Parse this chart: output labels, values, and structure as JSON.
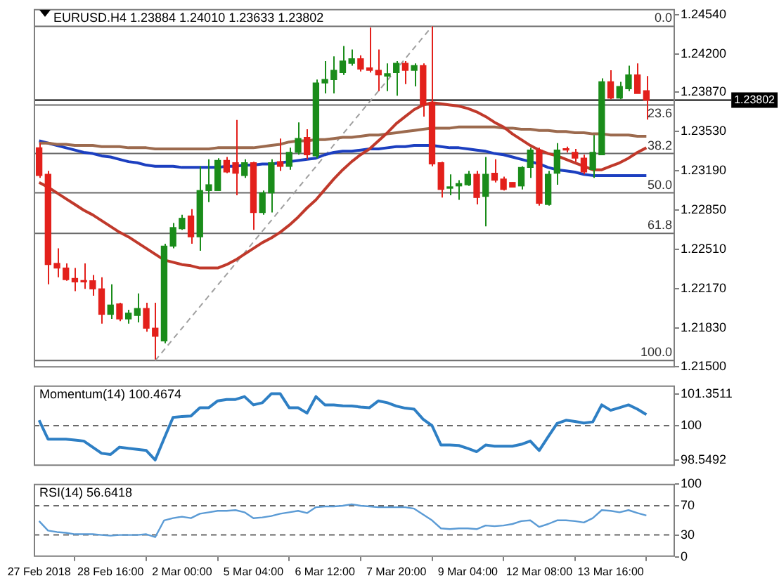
{
  "chart_data": [
    {
      "type": "candlestick",
      "title": "EURUSD.H4 1.23884 1.24010 1.23633 1.23802",
      "tick_labels": "y",
      "categories": [
        null,
        null,
        null,
        null,
        null,
        null,
        null,
        null,
        null,
        null,
        null,
        null,
        null,
        null,
        null,
        null,
        null,
        null,
        null,
        null,
        null,
        null,
        null,
        null,
        null,
        null,
        null,
        null,
        null,
        null,
        null,
        null,
        null,
        null,
        null,
        null,
        null,
        null,
        null,
        null,
        null,
        null,
        null,
        null,
        null,
        null,
        null,
        null,
        null,
        null,
        null,
        null,
        null,
        null,
        null,
        null,
        null,
        null,
        null,
        null,
        null,
        null,
        null,
        null,
        null,
        null,
        null,
        null,
        null
      ],
      "ohlc": [
        [
          1.2339,
          1.2343,
          1.2313,
          1.2315
        ],
        [
          1.2316,
          1.2319,
          1.2221,
          1.2238
        ],
        [
          1.2239,
          1.2252,
          1.2227,
          1.2235
        ],
        [
          1.2235,
          1.2239,
          1.2224,
          1.2225
        ],
        [
          1.2226,
          1.2235,
          1.2215,
          1.2223
        ],
        [
          1.2224,
          1.2239,
          1.2217,
          1.2223
        ],
        [
          1.2224,
          1.2229,
          1.2211,
          1.2217
        ],
        [
          1.2217,
          1.2227,
          1.2187,
          1.2195
        ],
        [
          1.2195,
          1.2221,
          1.2191,
          1.2203
        ],
        [
          1.2204,
          1.2205,
          1.2189,
          1.2191
        ],
        [
          1.2191,
          1.2199,
          1.2187,
          1.2196
        ],
        [
          1.2194,
          1.2213,
          1.2188,
          1.22
        ],
        [
          1.22,
          1.2205,
          1.218,
          1.2183
        ],
        [
          1.2183,
          1.2205,
          1.2156,
          1.2176
        ],
        [
          1.2172,
          1.2256,
          1.217,
          1.2254
        ],
        [
          1.2254,
          1.2274,
          1.2252,
          1.227
        ],
        [
          1.2269,
          1.2281,
          1.2268,
          1.2278
        ],
        [
          1.228,
          1.2286,
          1.2256,
          1.2262
        ],
        [
          1.2262,
          1.2323,
          1.225,
          1.2302
        ],
        [
          1.2302,
          1.2329,
          1.2292,
          1.2307
        ],
        [
          1.2302,
          1.233,
          1.2302,
          1.2328
        ],
        [
          1.2328,
          1.2331,
          1.2317,
          1.2318
        ],
        [
          1.2326,
          1.2363,
          1.2298,
          1.2317
        ],
        [
          1.2315,
          1.2329,
          1.2313,
          1.2326
        ],
        [
          1.2326,
          1.2327,
          1.2268,
          1.2283
        ],
        [
          1.2283,
          1.2302,
          1.2281,
          1.23
        ],
        [
          1.23,
          1.2329,
          1.2283,
          1.2326
        ],
        [
          1.2327,
          1.2347,
          1.2319,
          1.2323
        ],
        [
          1.2323,
          1.2339,
          1.232,
          1.2335
        ],
        [
          1.2335,
          1.2361,
          1.2333,
          1.2347
        ],
        [
          1.2348,
          1.2355,
          1.2329,
          1.2333
        ],
        [
          1.2332,
          1.2398,
          1.233,
          1.2395
        ],
        [
          1.2395,
          1.2414,
          1.2386,
          1.2398
        ],
        [
          1.2398,
          1.2418,
          1.2386,
          1.2406
        ],
        [
          1.2404,
          1.2427,
          1.2402,
          1.2414
        ],
        [
          1.2412,
          1.2424,
          1.241,
          1.2416
        ],
        [
          1.2416,
          1.2419,
          1.2405,
          1.2407
        ],
        [
          1.2408,
          1.2443,
          1.2404,
          1.2406
        ],
        [
          1.2406,
          1.2424,
          1.2388,
          1.2402
        ],
        [
          1.2401,
          1.2412,
          1.2388,
          1.2403
        ],
        [
          1.2404,
          1.2414,
          1.2384,
          1.2412
        ],
        [
          1.2412,
          1.2414,
          1.2394,
          1.2406
        ],
        [
          1.2406,
          1.2412,
          1.2392,
          1.241
        ],
        [
          1.241,
          1.2412,
          1.2366,
          1.2376
        ],
        [
          1.2378,
          1.2444,
          1.2323,
          1.2325
        ],
        [
          1.2326,
          1.2327,
          1.2296,
          1.2303
        ],
        [
          1.2304,
          1.2316,
          1.2298,
          1.2305
        ],
        [
          1.2306,
          1.2311,
          1.2294,
          1.2308
        ],
        [
          1.2307,
          1.2319,
          1.2306,
          1.2316
        ],
        [
          1.2316,
          1.2319,
          1.229,
          1.2296
        ],
        [
          1.2297,
          1.2331,
          1.2271,
          1.2316
        ],
        [
          1.2317,
          1.2329,
          1.2309,
          1.2311
        ],
        [
          1.2312,
          1.2314,
          1.2302,
          1.2303
        ],
        [
          1.2309,
          1.2309,
          1.2305,
          1.2305
        ],
        [
          1.2306,
          1.2323,
          1.2303,
          1.2322
        ],
        [
          1.2322,
          1.2339,
          1.2313,
          1.2337
        ],
        [
          1.2337,
          1.2339,
          1.2289,
          1.2291
        ],
        [
          1.229,
          1.2319,
          1.2289,
          1.2316
        ],
        [
          1.2317,
          1.2343,
          1.2307,
          1.2337
        ],
        [
          1.2338,
          1.234,
          1.2335,
          1.2337
        ],
        [
          1.2335,
          1.2338,
          1.2327,
          1.233
        ],
        [
          1.233,
          1.2333,
          1.2316,
          1.2318
        ],
        [
          1.232,
          1.235,
          1.2313,
          1.2335
        ],
        [
          1.2333,
          1.2399,
          1.2333,
          1.2396
        ],
        [
          1.2396,
          1.2406,
          1.2381,
          1.2382
        ],
        [
          1.2382,
          1.2396,
          1.2381,
          1.2392
        ],
        [
          1.239,
          1.241,
          1.2388,
          1.2402
        ],
        [
          1.2402,
          1.2412,
          1.2386,
          1.2386
        ],
        [
          1.23884,
          1.2401,
          1.23633,
          1.23802
        ]
      ],
      "series": [
        {
          "type": "line",
          "color": "#c0392b",
          "values": [
            1.2309,
            1.2305,
            1.23,
            1.2295,
            1.229,
            1.2285,
            1.2281,
            1.2276,
            1.2271,
            1.2266,
            1.2262,
            1.2257,
            1.2252,
            1.2247,
            1.2242,
            1.224,
            1.2238,
            1.2237,
            1.2235,
            1.2235,
            1.2235,
            1.2238,
            1.2242,
            1.2247,
            1.2252,
            1.2257,
            1.2261,
            1.2266,
            1.2272,
            1.2279,
            1.2287,
            1.2294,
            1.2303,
            1.2312,
            1.232,
            1.2327,
            1.2333,
            1.2338,
            1.2345,
            1.2352,
            1.236,
            1.2366,
            1.2372,
            1.2376,
            1.2378,
            1.2377,
            1.2376,
            1.2375,
            1.2373,
            1.237,
            1.2366,
            1.2361,
            1.2357,
            1.2351,
            1.2346,
            1.2341,
            1.2337,
            1.2334,
            1.2332,
            1.2329,
            1.2326,
            1.2323,
            1.232,
            1.232,
            1.2323,
            1.2326,
            1.233,
            1.2335,
            1.2339
          ]
        },
        {
          "type": "line",
          "color": "#9c6a4e",
          "values": [
            1.2343,
            1.2343,
            1.2342,
            1.2342,
            1.2341,
            1.2341,
            1.2341,
            1.234,
            1.234,
            1.234,
            1.2339,
            1.2339,
            1.2339,
            1.2338,
            1.2338,
            1.2338,
            1.2338,
            1.2338,
            1.2338,
            1.2338,
            1.2339,
            1.2339,
            1.2339,
            1.2339,
            1.2339,
            1.234,
            1.2341,
            1.2342,
            1.2344,
            1.2345,
            1.2345,
            1.2346,
            1.2346,
            1.2347,
            1.2348,
            1.2348,
            1.2349,
            1.235,
            1.235,
            1.2351,
            1.2352,
            1.2353,
            1.2354,
            1.2355,
            1.2356,
            1.2356,
            1.2356,
            1.2357,
            1.2357,
            1.2357,
            1.2357,
            1.2357,
            1.2356,
            1.2356,
            1.2355,
            1.2355,
            1.2354,
            1.2354,
            1.2353,
            1.2353,
            1.2352,
            1.2352,
            1.2351,
            1.2351,
            1.235,
            1.235,
            1.235,
            1.2349,
            1.2349
          ]
        },
        {
          "type": "line",
          "color": "#1c3fc0",
          "values": [
            1.2345,
            1.2343,
            1.2341,
            1.2339,
            1.2337,
            1.2335,
            1.2334,
            1.2332,
            1.2331,
            1.2329,
            1.2327,
            1.2326,
            1.2324,
            1.2323,
            1.2323,
            1.2323,
            1.2322,
            1.2322,
            1.2322,
            1.2322,
            1.2322,
            1.2323,
            1.2323,
            1.2324,
            1.2324,
            1.2325,
            1.2325,
            1.2326,
            1.2327,
            1.2328,
            1.2329,
            1.233,
            1.2333,
            1.2335,
            1.2336,
            1.2336,
            1.2337,
            1.2338,
            1.2338,
            1.2339,
            1.234,
            1.234,
            1.2341,
            1.2341,
            1.2341,
            1.234,
            1.2339,
            1.2339,
            1.2338,
            1.2337,
            1.2336,
            1.2334,
            1.2333,
            1.2331,
            1.2329,
            1.2327,
            1.2325,
            1.2322,
            1.232,
            1.2319,
            1.2318,
            1.2316,
            1.2315,
            1.2315,
            1.2315,
            1.2315,
            1.2315,
            1.2315,
            1.2315
          ]
        },
        {
          "type": "line",
          "color": "#a0a0a0",
          "line_style": "dashed",
          "values": [
            null,
            null,
            null,
            null,
            null,
            null,
            null,
            null,
            null,
            null,
            null,
            null,
            null,
            1.2155,
            null,
            null,
            null,
            null,
            null,
            null,
            null,
            null,
            null,
            null,
            null,
            null,
            null,
            null,
            null,
            null,
            null,
            null,
            null,
            null,
            null,
            null,
            null,
            null,
            null,
            null,
            null,
            null,
            null,
            null,
            1.2444,
            null,
            null,
            null,
            null,
            null,
            null,
            null,
            null,
            null,
            null,
            null,
            null,
            null,
            null,
            null,
            null,
            null,
            null,
            null,
            null,
            null,
            null,
            null,
            null
          ]
        }
      ],
      "ylim": [
        1.2149,
        1.2459
      ],
      "yticks": [
        {
          "value": 1.2454,
          "label": "1.24540"
        },
        {
          "value": 1.242,
          "label": "1.24200"
        },
        {
          "value": 1.2387,
          "label": "1.23870"
        },
        {
          "value": 1.2353,
          "label": "1.23530"
        },
        {
          "value": 1.2319,
          "label": "1.23190"
        },
        {
          "value": 1.2285,
          "label": "1.22850"
        },
        {
          "value": 1.2251,
          "label": "1.22510"
        },
        {
          "value": 1.2217,
          "label": "1.22170"
        },
        {
          "value": 1.2183,
          "label": "1.21830"
        },
        {
          "value": 1.215,
          "label": "1.21500"
        }
      ],
      "ref_lines": [
        {
          "axis": "y",
          "value": 1.2444
        },
        {
          "axis": "y",
          "value": 1.2376
        },
        {
          "axis": "y",
          "value": 1.2334
        },
        {
          "axis": "y",
          "value": 1.23
        },
        {
          "axis": "y",
          "value": 1.2265
        },
        {
          "axis": "y",
          "value": 1.2155
        },
        {
          "axis": "y",
          "value": 1.23802,
          "label": "1.23802",
          "color": "#000000"
        }
      ],
      "annotations": [
        {
          "text": "0.0",
          "y": 1.2444
        },
        {
          "text": "23.6",
          "y": 1.2376
        },
        {
          "text": "38.2",
          "y": 1.2334
        },
        {
          "text": "50.0",
          "y": 1.23
        },
        {
          "text": "61.8",
          "y": 1.2265
        },
        {
          "text": "100.0",
          "y": 1.2155
        }
      ]
    },
    {
      "type": "line",
      "title": "Momentum(14) 100.4674",
      "tick_labels": "y",
      "color": "#2e7fc4",
      "categories": [
        null,
        null,
        null,
        null,
        null,
        null,
        null,
        null,
        null,
        null,
        null,
        null,
        null,
        null,
        null,
        null,
        null,
        null,
        null,
        null,
        null,
        null,
        null,
        null,
        null,
        null,
        null,
        null,
        null,
        null,
        null,
        null,
        null,
        null,
        null,
        null,
        null,
        null,
        null,
        null,
        null,
        null,
        null,
        null,
        null,
        null,
        null,
        null,
        null,
        null,
        null,
        null,
        null,
        null,
        null,
        null,
        null,
        null,
        null,
        null,
        null,
        null,
        null,
        null,
        null,
        null,
        null,
        null,
        null
      ],
      "values": [
        100.23,
        99.43,
        99.43,
        99.43,
        99.39,
        99.35,
        99.09,
        98.83,
        98.78,
        99.09,
        99.04,
        99.0,
        98.95,
        98.5492,
        99.46,
        100.35,
        100.39,
        100.41,
        100.76,
        100.76,
        101.05,
        101.11,
        101.11,
        101.23,
        100.88,
        100.97,
        101.3511,
        101.35,
        100.76,
        100.76,
        100.53,
        101.23,
        100.88,
        100.88,
        100.84,
        100.83,
        100.79,
        100.76,
        101.05,
        100.97,
        100.83,
        100.74,
        100.7,
        100.27,
        100.0,
        99.18,
        99.18,
        99.16,
        99.04,
        98.9,
        99.18,
        99.13,
        99.13,
        99.13,
        99.21,
        99.35,
        98.95,
        99.53,
        100.09,
        100.23,
        100.18,
        100.11,
        100.16,
        100.88,
        100.65,
        100.76,
        100.88,
        100.7,
        100.4674
      ],
      "ylim": [
        98.3,
        101.7
      ],
      "yticks": [
        101.3511,
        100,
        98.5492
      ],
      "ref_lines": [
        {
          "axis": "y",
          "value": 100,
          "line_style": "dashed"
        }
      ]
    },
    {
      "type": "line",
      "title": "RSI(14) 56.6418",
      "color": "#5b9bd5",
      "categories": [
        "27 Feb 2018",
        null,
        null,
        null,
        null,
        null,
        null,
        null,
        "28 Feb 16:00",
        null,
        null,
        null,
        null,
        null,
        null,
        null,
        "2 Mar 00:00",
        null,
        null,
        null,
        null,
        null,
        null,
        null,
        "5 Mar 04:00",
        null,
        null,
        null,
        null,
        null,
        null,
        null,
        "6 Mar 12:00",
        null,
        null,
        null,
        null,
        null,
        null,
        null,
        "7 Mar 20:00",
        null,
        null,
        null,
        null,
        null,
        null,
        null,
        "9 Mar 04:00",
        null,
        null,
        null,
        null,
        null,
        null,
        null,
        "12 Mar 08:00",
        null,
        null,
        null,
        null,
        null,
        null,
        null,
        "13 Mar 16:00",
        null,
        null,
        null,
        null
      ],
      "values": [
        49,
        36,
        34,
        33,
        31,
        31,
        31,
        30,
        29,
        30,
        30,
        30,
        31,
        27,
        50,
        53,
        55,
        53,
        59,
        61,
        63,
        63,
        64,
        61,
        53,
        54,
        56,
        59,
        61,
        63,
        60,
        68,
        69,
        69,
        70,
        72,
        70,
        69,
        68,
        68,
        68,
        68,
        66,
        58,
        50,
        39,
        38,
        39,
        39,
        38,
        43,
        42,
        43,
        45,
        49,
        50,
        41,
        45,
        50,
        50,
        49,
        47,
        53,
        64,
        63,
        61,
        64,
        60,
        56.6418
      ],
      "ylim": [
        0,
        100
      ],
      "yticks": [
        100,
        70,
        30,
        0
      ],
      "ref_lines": [
        {
          "axis": "y",
          "value": 70,
          "line_style": "dashed"
        },
        {
          "axis": "y",
          "value": 30,
          "line_style": "dashed"
        }
      ]
    }
  ]
}
